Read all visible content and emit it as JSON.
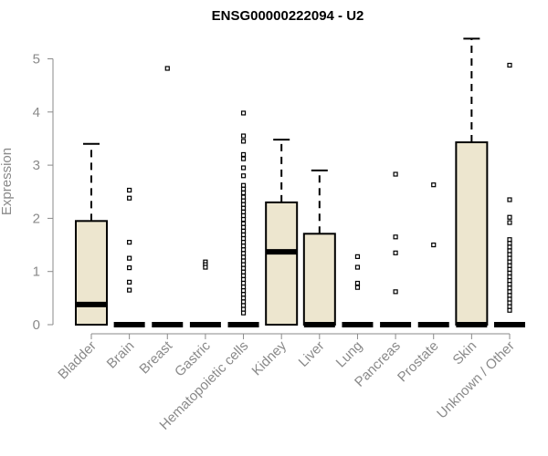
{
  "chart_data": {
    "type": "boxplot",
    "title": "ENSG00000222094 - U2",
    "ylabel": "Expression",
    "xlabel": "",
    "ylim": [
      0,
      5.5
    ],
    "yticks": [
      0,
      1,
      2,
      3,
      4,
      5
    ],
    "box_fill": "#ede6cf",
    "categories": [
      "Bladder",
      "Brain",
      "Breast",
      "Gastric",
      "Hematopoietic cells",
      "Kidney",
      "Liver",
      "Lung",
      "Pancreas",
      "Prostate",
      "Skin",
      "Unknown / Other"
    ],
    "boxes": [
      {
        "q1": 0,
        "median": 0.38,
        "q3": 1.95,
        "whisker_low": 0,
        "whisker_high": 3.4,
        "outliers": []
      },
      {
        "q1": 0,
        "median": 0,
        "q3": 0,
        "whisker_low": 0,
        "whisker_high": 0,
        "outliers": [
          2.53,
          2.38,
          1.55,
          1.25,
          1.07,
          0.8,
          0.65
        ]
      },
      {
        "q1": 0,
        "median": 0,
        "q3": 0,
        "whisker_low": 0,
        "whisker_high": 0,
        "outliers": [
          4.82
        ]
      },
      {
        "q1": 0,
        "median": 0,
        "q3": 0,
        "whisker_low": 0,
        "whisker_high": 0,
        "outliers": [
          1.18,
          1.13,
          1.08
        ]
      },
      {
        "q1": 0,
        "median": 0,
        "q3": 0,
        "whisker_low": 0,
        "whisker_high": 0,
        "outliers": [
          3.98,
          3.55,
          3.45,
          3.2,
          3.12,
          2.95,
          2.8,
          2.62,
          2.55,
          2.48,
          2.4,
          2.33,
          2.26,
          2.19,
          2.12,
          2.05,
          1.98,
          1.9,
          1.83,
          1.76,
          1.69,
          1.62,
          1.55,
          1.48,
          1.41,
          1.34,
          1.27,
          1.2,
          1.13,
          1.06,
          0.99,
          0.92,
          0.85,
          0.78,
          0.71,
          0.64,
          0.57,
          0.5,
          0.43,
          0.36,
          0.29,
          0.22
        ]
      },
      {
        "q1": 0,
        "median": 1.37,
        "q3": 2.3,
        "whisker_low": 0,
        "whisker_high": 3.48,
        "outliers": []
      },
      {
        "q1": 0,
        "median": 0,
        "q3": 1.71,
        "whisker_low": 0,
        "whisker_high": 2.9,
        "outliers": []
      },
      {
        "q1": 0,
        "median": 0,
        "q3": 0,
        "whisker_low": 0,
        "whisker_high": 0,
        "outliers": [
          1.28,
          1.08,
          0.78,
          0.7
        ]
      },
      {
        "q1": 0,
        "median": 0,
        "q3": 0,
        "whisker_low": 0,
        "whisker_high": 0,
        "outliers": [
          2.83,
          1.65,
          1.35,
          0.62
        ]
      },
      {
        "q1": 0,
        "median": 0,
        "q3": 0,
        "whisker_low": 0,
        "whisker_high": 0,
        "outliers": [
          2.63,
          1.5
        ]
      },
      {
        "q1": 0,
        "median": 0,
        "q3": 3.43,
        "whisker_low": 0,
        "whisker_high": 5.38,
        "outliers": []
      },
      {
        "q1": 0,
        "median": 0,
        "q3": 0,
        "whisker_low": 0,
        "whisker_high": 0,
        "outliers": [
          4.88,
          2.35,
          2.02,
          1.92,
          1.6,
          1.53,
          1.46,
          1.39,
          1.32,
          1.25,
          1.18,
          1.11,
          1.04,
          0.97,
          0.9,
          0.83,
          0.76,
          0.69,
          0.62,
          0.55,
          0.48,
          0.41,
          0.34,
          0.27
        ]
      }
    ]
  }
}
